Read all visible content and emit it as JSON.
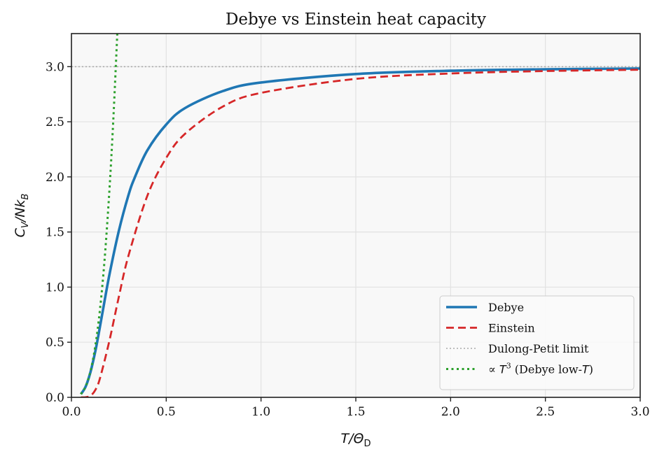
{
  "chart_data": {
    "type": "line",
    "title": "Debye vs Einstein heat capacity",
    "xlabel": "T/Θ_D",
    "ylabel": "C_V/Nk_B",
    "xlim": [
      0,
      3.0
    ],
    "ylim": [
      0,
      3.3
    ],
    "xticks": [
      "0.0",
      "0.5",
      "1.0",
      "1.5",
      "2.0",
      "2.5",
      "3.0"
    ],
    "yticks": [
      "0.0",
      "0.5",
      "1.0",
      "1.5",
      "2.0",
      "2.5",
      "3.0"
    ],
    "grid": true,
    "legend_position": "lower-right",
    "series": [
      {
        "name": "Debye",
        "style": "solid",
        "color": "#1f77b4",
        "x": [
          0.05,
          0.075,
          0.1,
          0.125,
          0.143,
          0.167,
          0.2,
          0.25,
          0.3,
          0.333,
          0.4,
          0.5,
          0.6,
          0.8,
          1.0,
          1.5,
          2.0,
          2.5,
          3.0
        ],
        "y": [
          0.029,
          0.098,
          0.227,
          0.41,
          0.57,
          0.8,
          1.11,
          1.51,
          1.83,
          1.99,
          2.24,
          2.475,
          2.625,
          2.779,
          2.856,
          2.933,
          2.963,
          2.976,
          2.983
        ]
      },
      {
        "name": "Einstein",
        "style": "dashed",
        "color": "#d62728",
        "x": [
          0.05,
          0.075,
          0.1,
          0.125,
          0.15,
          0.2,
          0.25,
          0.3,
          0.4,
          0.5,
          0.6,
          0.8,
          1.0,
          1.5,
          2.0,
          2.5,
          3.0
        ],
        "y": [
          0.0,
          0.001,
          0.014,
          0.064,
          0.17,
          0.512,
          0.912,
          1.28,
          1.827,
          2.172,
          2.392,
          2.639,
          2.762,
          2.889,
          2.938,
          2.96,
          2.972
        ]
      },
      {
        "name": "Dulong-Petit limit",
        "style": "dotted",
        "color": "#aaaaaa",
        "x": [
          0,
          3.0
        ],
        "y": [
          3.0,
          3.0
        ]
      },
      {
        "name": "∝ T³ (Debye low-T)",
        "style": "dotted",
        "color": "#2ca02c",
        "x": [
          0.05,
          0.075,
          0.1,
          0.125,
          0.15,
          0.175,
          0.2,
          0.22,
          0.24,
          0.245
        ],
        "y": [
          0.029,
          0.099,
          0.234,
          0.457,
          0.789,
          1.253,
          1.87,
          2.49,
          3.23,
          3.44
        ]
      }
    ]
  }
}
